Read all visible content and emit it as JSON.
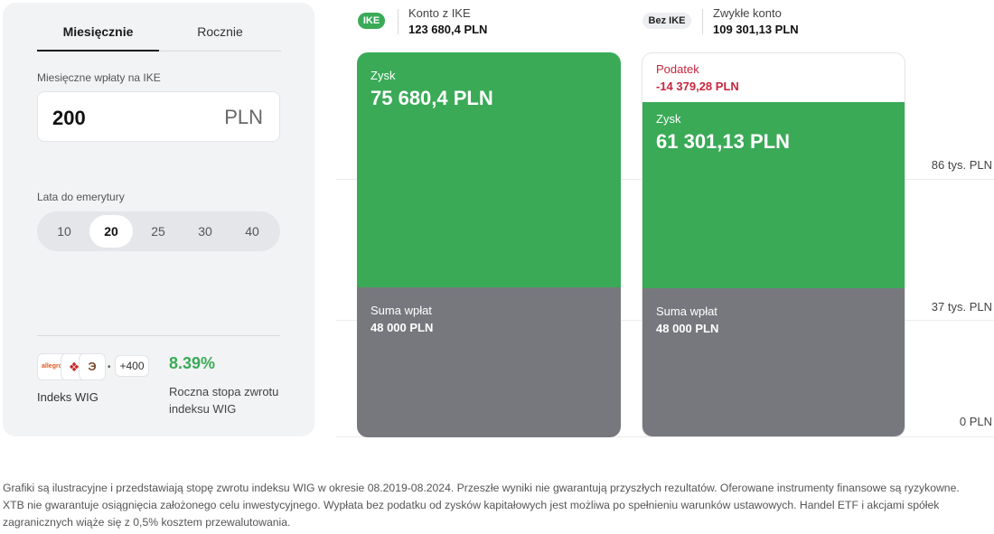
{
  "tabs": [
    {
      "label": "Miesięcznie",
      "active": true
    },
    {
      "label": "Rocznie",
      "active": false
    }
  ],
  "monthly_input": {
    "label": "Miesięczne wpłaty na IKE",
    "value": "200",
    "unit": "PLN"
  },
  "years": {
    "label": "Lata do emerytury",
    "options": [
      "10",
      "20",
      "25",
      "30",
      "40"
    ],
    "selected": "20"
  },
  "index": {
    "logos": [
      "allegro",
      "cd-projekt-icon",
      "brand-logo-icon"
    ],
    "more": "+400",
    "name": "Indeks WIG",
    "rate": "8.39%",
    "rate_label": "Roczna stopa zwrotu indeksu WIG"
  },
  "axis": {
    "labels": [
      "86 tys. PLN",
      "37 tys. PLN",
      "0 PLN"
    ]
  },
  "ike": {
    "badge": "IKE",
    "name": "Konto z IKE",
    "total": "123 680,4 PLN",
    "profit_label": "Zysk",
    "profit_value": "75 680,4 PLN",
    "deposits_label": "Suma wpłat",
    "deposits_value": "48 000 PLN"
  },
  "regular": {
    "badge": "Bez IKE",
    "name": "Zwykłe konto",
    "total": "109 301,13 PLN",
    "tax_label": "Podatek",
    "tax_value": "-14 379,28 PLN",
    "profit_label": "Zysk",
    "profit_value": "61 301,13 PLN",
    "deposits_label": "Suma wpłat",
    "deposits_value": "48 000 PLN"
  },
  "colors": {
    "green": "#3aaa57",
    "gray": "#77787e",
    "tax_red": "#c8253d"
  },
  "disclaimer": "Grafiki są ilustracyjne i przedstawiają stopę zwrotu indeksu WIG w okresie 08.2019-08.2024. Przeszłe wyniki nie gwarantują przyszłych rezultatów. Oferowane instrumenty finansowe są ryzykowne. XTB nie gwarantuje osiągnięcia założonego celu inwestycyjnego. Wypłata bez podatku od zysków kapitałowych jest możliwa po spełnieniu warunków ustawowych. Handel ETF i akcjami spółek zagranicznych wiąże się z 0,5% kosztem przewalutowania."
}
